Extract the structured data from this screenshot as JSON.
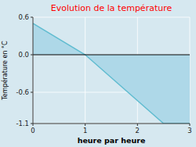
{
  "chart_data": {
    "type": "area",
    "title": "Evolution de la température",
    "xlabel": "heure par heure",
    "ylabel": "Température en °C",
    "x": [
      0,
      1,
      2.5,
      3
    ],
    "values": [
      0.5,
      0.0,
      -1.1,
      -1.1
    ],
    "color": "#60bcd0",
    "xlim": [
      0,
      3
    ],
    "ylim": [
      -1.1,
      0.6
    ],
    "xticks": [
      0,
      1,
      2,
      3
    ],
    "yticks": [
      -1.1,
      -0.6,
      {
        "value": 0.0,
        "label": "0.0"
      },
      0.6
    ],
    "grid": true
  }
}
